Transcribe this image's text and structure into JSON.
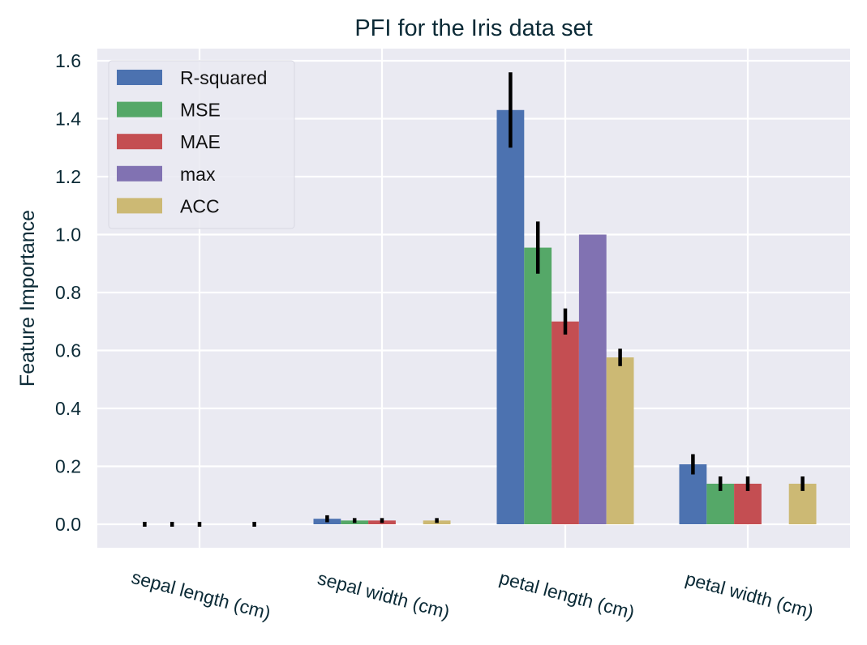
{
  "chart_data": {
    "type": "bar",
    "title": "PFI for the Iris data set",
    "xlabel": "",
    "ylabel": "Feature Importance",
    "ylim": [
      -0.08,
      1.65
    ],
    "yticks": [
      "0.0",
      "0.2",
      "0.4",
      "0.6",
      "0.8",
      "1.0",
      "1.2",
      "1.4",
      "1.6"
    ],
    "categories": [
      "sepal length (cm)",
      "sepal width (cm)",
      "petal length (cm)",
      "petal width (cm)"
    ],
    "grid": true,
    "legend_position": "upper left",
    "series": [
      {
        "name": "R-squared",
        "color": "#4c72b0",
        "values": [
          0.0,
          0.019,
          1.43,
          0.207
        ],
        "errors": [
          0.0,
          0.012,
          0.13,
          0.035
        ]
      },
      {
        "name": "MSE",
        "color": "#55a868",
        "values": [
          0.0,
          0.013,
          0.955,
          0.14
        ],
        "errors": [
          0.0,
          0.008,
          0.09,
          0.025
        ]
      },
      {
        "name": "MAE",
        "color": "#c44e52",
        "values": [
          0.0,
          0.013,
          0.7,
          0.14
        ],
        "errors": [
          0.0,
          0.008,
          0.045,
          0.025
        ]
      },
      {
        "name": "max",
        "color": "#8172b2",
        "values": [
          0.0,
          0.0,
          1.0,
          0.0
        ],
        "errors": [
          0.0,
          0.0,
          0.0,
          0.0
        ]
      },
      {
        "name": "ACC",
        "color": "#ccb974",
        "values": [
          0.0,
          0.013,
          0.576,
          0.14
        ],
        "errors": [
          0.0,
          0.008,
          0.03,
          0.025
        ]
      }
    ]
  },
  "colors": {
    "plot_background": "#eaeaf2",
    "grid": "#ffffff",
    "text": "#0b2a36",
    "error_bar": "#000000"
  }
}
